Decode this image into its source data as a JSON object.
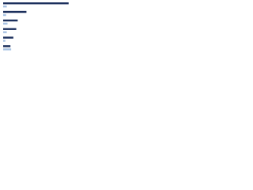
{
  "chart_data": {
    "type": "hbar",
    "categories": [
      null,
      null,
      null,
      null,
      null,
      null
    ],
    "series": [
      {
        "color": "#1b2f5c",
        "values": [
          90,
          32,
          20,
          18,
          14,
          10
        ]
      },
      {
        "color": "#a9c3e3",
        "values": [
          5,
          4,
          6,
          5,
          3,
          11
        ]
      }
    ],
    "xlim": [
      0,
      100
    ]
  }
}
